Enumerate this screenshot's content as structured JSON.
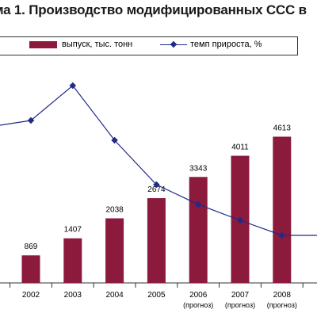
{
  "title": "ма 1. Производство модифицированных ССС в",
  "legend": {
    "bars_label": "выпуск, тыс. тонн",
    "line_label": "темп прироста, %"
  },
  "colors": {
    "bar": "#8b1a3c",
    "line": "#1f2a8a",
    "axis": "#333333"
  },
  "chart_data": {
    "type": "bar",
    "title": "ма 1. Производство модифицированных ССС в",
    "categories": [
      "2002",
      "2003",
      "2004",
      "2005",
      "2006",
      "2007",
      "2008"
    ],
    "category_sublabels": [
      "",
      "",
      "",
      "",
      "(прогноз)",
      "(прогноз)",
      "(прогноз)"
    ],
    "series": [
      {
        "name": "выпуск, тыс. тонн",
        "type": "bar",
        "values": [
          869,
          1407,
          2038,
          2674,
          3343,
          4011,
          4613
        ],
        "data_labels": [
          "869",
          "1407",
          "2038",
          "2674",
          "3343",
          "4011",
          "4613"
        ]
      },
      {
        "name": "темп прироста, %",
        "type": "line",
        "values": [
          null,
          null,
          null,
          null,
          null,
          null,
          null
        ]
      }
    ],
    "legend_position": "top",
    "grid": false
  }
}
